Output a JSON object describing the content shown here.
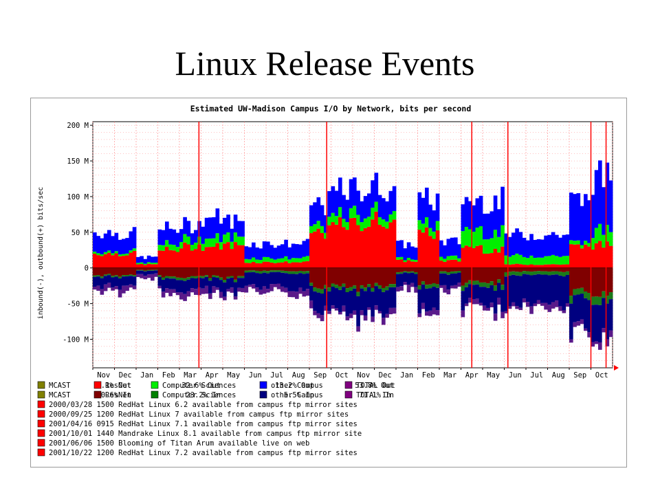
{
  "slide_title": "Linux Release Events",
  "chart_data": {
    "type": "area",
    "title": "Estimated UW-Madison Campus I/O by Network, bits per second",
    "ylabel": "inbound(-), outbound(+) bits/sec",
    "xlabel": "",
    "ylim": [
      -140,
      205
    ],
    "y_ticks": [
      {
        "value": 200,
        "label": "200 M"
      },
      {
        "value": 150,
        "label": "150 M"
      },
      {
        "value": 100,
        "label": "100 M"
      },
      {
        "value": 50,
        "label": "50 M"
      },
      {
        "value": 0,
        "label": "0"
      },
      {
        "value": -50,
        "label": "-50 M"
      },
      {
        "value": -100,
        "label": "-100 M"
      }
    ],
    "x_tick_labels": [
      "Nov",
      "Dec",
      "Jan",
      "Feb",
      "Mar",
      "Apr",
      "May",
      "Jun",
      "Jul",
      "Aug",
      "Sep",
      "Oct",
      "Nov",
      "Dec",
      "Jan",
      "Feb",
      "Mar",
      "Apr",
      "May",
      "Jun",
      "Jul",
      "Aug",
      "Sep",
      "Oct"
    ],
    "x_periods": [
      "1999-11",
      "1999-12",
      "2000-01",
      "2000-02",
      "2000-03",
      "2000-04",
      "2000-05",
      "2000-06",
      "2000-07",
      "2000-08",
      "2000-09",
      "2000-10",
      "2000-11",
      "2000-12",
      "2001-01",
      "2001-02",
      "2001-03",
      "2001-04",
      "2001-05",
      "2001-06",
      "2001-07",
      "2001-08",
      "2001-09",
      "2001-10"
    ],
    "stack_order_outbound": [
      "ResNet",
      "Computer Sciences",
      "other Campus"
    ],
    "stack_order_inbound": [
      "ResNet",
      "Computer Sciences",
      "other Campus"
    ],
    "outbound": {
      "ResNet": [
        20,
        20,
        5,
        25,
        30,
        30,
        32,
        8,
        8,
        8,
        50,
        60,
        62,
        68,
        10,
        48,
        10,
        30,
        25,
        5,
        5,
        5,
        30,
        32
      ],
      "Computer Sciences": [
        3,
        3,
        2,
        8,
        10,
        12,
        12,
        6,
        6,
        6,
        10,
        12,
        15,
        12,
        3,
        12,
        5,
        25,
        25,
        12,
        12,
        12,
        5,
        20
      ],
      "other Campus": [
        27,
        25,
        8,
        22,
        20,
        30,
        22,
        20,
        20,
        20,
        30,
        35,
        35,
        35,
        20,
        35,
        22,
        40,
        45,
        30,
        30,
        30,
        60,
        75
      ]
    },
    "inbound": {
      "ResNet": [
        10,
        10,
        3,
        12,
        12,
        12,
        14,
        4,
        4,
        4,
        25,
        25,
        28,
        25,
        5,
        22,
        5,
        20,
        20,
        5,
        5,
        5,
        35,
        35
      ],
      "Computer Sciences": [
        2,
        2,
        1,
        3,
        3,
        3,
        3,
        3,
        3,
        3,
        5,
        5,
        5,
        5,
        2,
        5,
        3,
        6,
        6,
        5,
        5,
        5,
        10,
        10
      ],
      "other Campus": [
        13,
        13,
        5,
        15,
        15,
        15,
        17,
        20,
        20,
        20,
        25,
        30,
        35,
        32,
        15,
        30,
        17,
        22,
        26,
        40,
        42,
        40,
        45,
        45
      ]
    },
    "colors": {
      "ResNet_out": "#ff0000",
      "CS_out": "#00ee00",
      "Campus_out": "#0000ff",
      "ResNet_in": "#800000",
      "CS_in": "#1a7a1a",
      "Campus_in": "#000080",
      "TOTAL_in": "#5a1a8a",
      "mcast": "#808000",
      "event_line": "#ff0000",
      "grid": "#ff8080",
      "frame_bg": "#ffffff"
    },
    "event_dates": [
      "2000-03-28",
      "2000-09-25",
      "2001-04-16",
      "2001-10-01",
      "2001-06-06",
      "2001-10-22"
    ],
    "legend": [
      {
        "name": "MCAST",
        "value": "0.1% Out",
        "color": "#808000"
      },
      {
        "name": "ResNet",
        "value": "32.6% Out",
        "color": "#ff0000"
      },
      {
        "name": "Computer Sciences",
        "value": "13.2% Out",
        "color": "#00ee00"
      },
      {
        "name": "other Campus",
        "value": "53.8% Out",
        "color": "#0000ff"
      },
      {
        "name": "TOTAL Out",
        "value": "",
        "color": "#800080"
      },
      {
        "name": "MCAST",
        "value": "0.6% In",
        "color": "#808000"
      },
      {
        "name": "ResNet",
        "value": "23.2% In",
        "color": "#800000"
      },
      {
        "name": "Computer Sciences",
        "value": "5.5% In",
        "color": "#008000"
      },
      {
        "name": "other Campus",
        "value": "71.1% In",
        "color": "#000080"
      },
      {
        "name": "TOTAL In",
        "value": "",
        "color": "#800080"
      }
    ],
    "events": [
      {
        "text": "2000/03/28 1500 RedHat Linux 6.2 available from campus ftp mirror sites",
        "color": "#ff0000"
      },
      {
        "text": "2000/09/25 1200 RedHat Linux 7 available from campus ftp mirror sites",
        "color": "#ff0000"
      },
      {
        "text": "2001/04/16 0915 RedHat Linux 7.1 available from campus ftp mirror sites",
        "color": "#ff0000"
      },
      {
        "text": "2001/10/01 1440 Mandrake Linux 8.1 available from campus ftp mirror site",
        "color": "#ff0000"
      },
      {
        "text": "2001/06/06 1500 Blooming of Titan Arum available live on web",
        "color": "#ff0000"
      },
      {
        "text": "2001/10/22 1200 RedHat Linux 7.2 available from campus ftp mirror sites",
        "color": "#ff0000"
      }
    ]
  }
}
